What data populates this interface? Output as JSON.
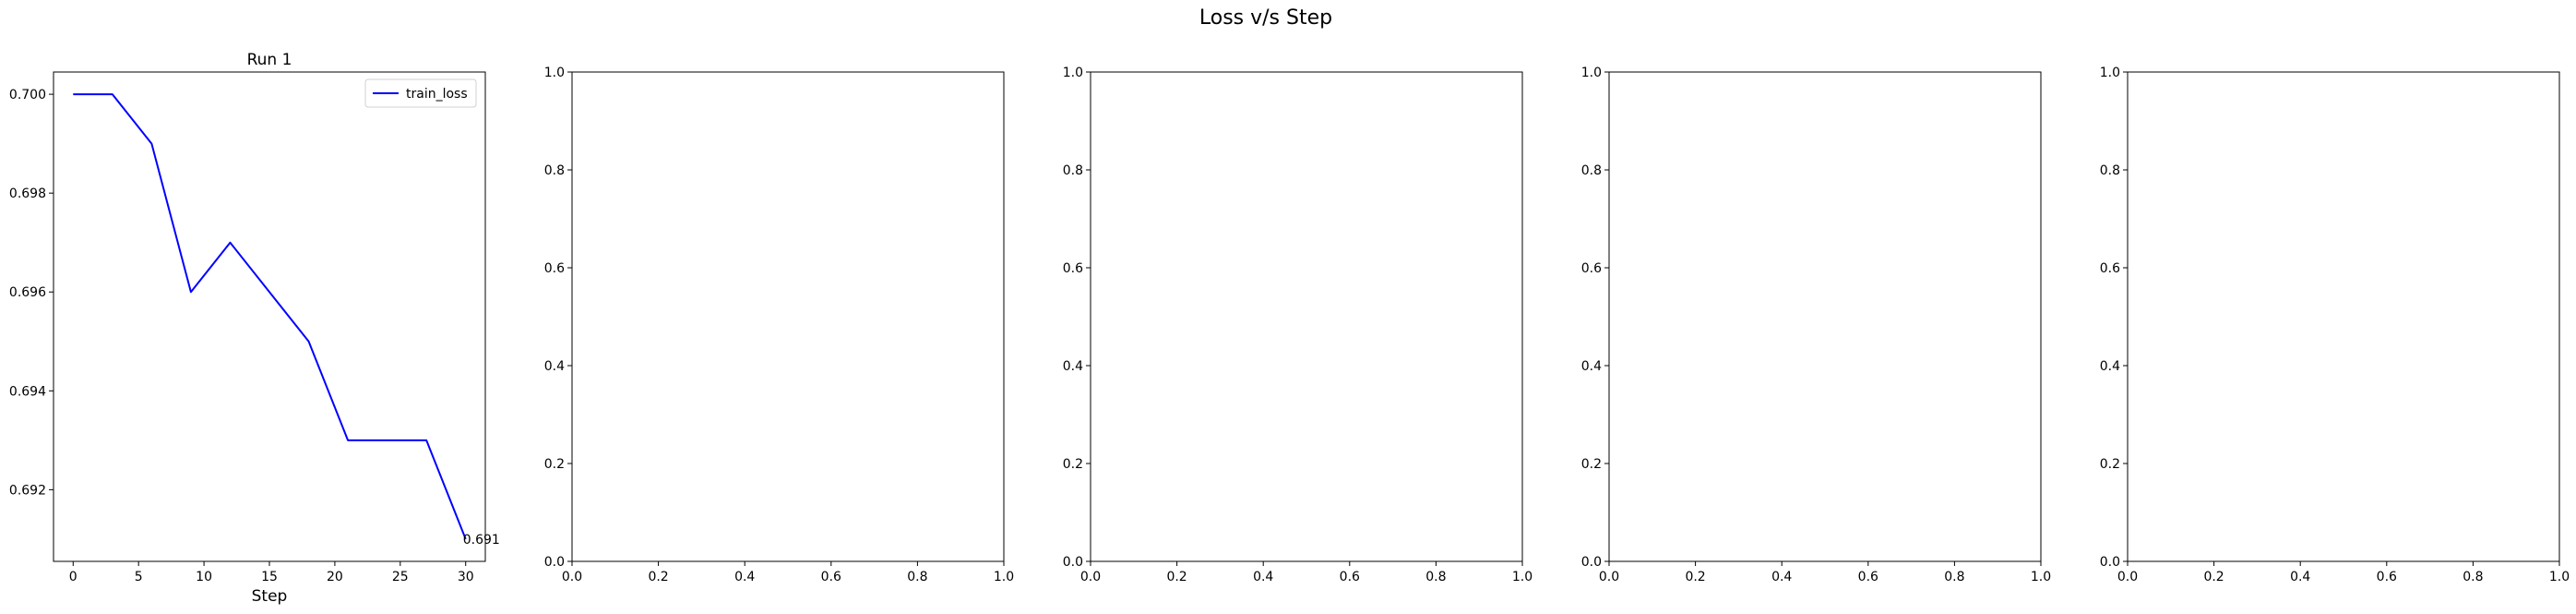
{
  "figure": {
    "suptitle": "Loss v/s Step"
  },
  "chart_data": [
    {
      "type": "line",
      "title": "Run 1",
      "xlabel": "Step",
      "ylabel": "",
      "xlim": [
        -1.5,
        31.5
      ],
      "ylim": [
        0.69055,
        0.70045
      ],
      "xticks": [
        0,
        5,
        10,
        15,
        20,
        25,
        30
      ],
      "xtick_labels": [
        "0",
        "5",
        "10",
        "15",
        "20",
        "25",
        "30"
      ],
      "yticks": [
        0.692,
        0.694,
        0.696,
        0.698,
        0.7
      ],
      "ytick_labels": [
        "0.692",
        "0.694",
        "0.696",
        "0.698",
        "0.700"
      ],
      "grid": false,
      "legend_position": "upper right",
      "series": [
        {
          "name": "train_loss",
          "color": "#0000ff",
          "x": [
            0,
            3,
            6,
            9,
            12,
            15,
            18,
            21,
            24,
            27,
            30
          ],
          "y": [
            0.7,
            0.7,
            0.699,
            0.696,
            0.697,
            0.696,
            0.695,
            0.693,
            0.693,
            0.693,
            0.691
          ]
        }
      ],
      "annotations": [
        {
          "text": "0.691",
          "x": 30,
          "y": 0.691
        }
      ]
    },
    {
      "type": "line",
      "title": "",
      "xlabel": "",
      "ylabel": "",
      "xlim": [
        0,
        1
      ],
      "ylim": [
        0,
        1
      ],
      "xticks": [
        0,
        0.2,
        0.4,
        0.6,
        0.8,
        1.0
      ],
      "xtick_labels": [
        "0.0",
        "0.2",
        "0.4",
        "0.6",
        "0.8",
        "1.0"
      ],
      "yticks": [
        0,
        0.2,
        0.4,
        0.6,
        0.8,
        1.0
      ],
      "ytick_labels": [
        "0.0",
        "0.2",
        "0.4",
        "0.6",
        "0.8",
        "1.0"
      ],
      "grid": false,
      "series": [],
      "annotations": []
    },
    {
      "type": "line",
      "title": "",
      "xlabel": "",
      "ylabel": "",
      "xlim": [
        0,
        1
      ],
      "ylim": [
        0,
        1
      ],
      "xticks": [
        0,
        0.2,
        0.4,
        0.6,
        0.8,
        1.0
      ],
      "xtick_labels": [
        "0.0",
        "0.2",
        "0.4",
        "0.6",
        "0.8",
        "1.0"
      ],
      "yticks": [
        0,
        0.2,
        0.4,
        0.6,
        0.8,
        1.0
      ],
      "ytick_labels": [
        "0.0",
        "0.2",
        "0.4",
        "0.6",
        "0.8",
        "1.0"
      ],
      "grid": false,
      "series": [],
      "annotations": []
    },
    {
      "type": "line",
      "title": "",
      "xlabel": "",
      "ylabel": "",
      "xlim": [
        0,
        1
      ],
      "ylim": [
        0,
        1
      ],
      "xticks": [
        0,
        0.2,
        0.4,
        0.6,
        0.8,
        1.0
      ],
      "xtick_labels": [
        "0.0",
        "0.2",
        "0.4",
        "0.6",
        "0.8",
        "1.0"
      ],
      "yticks": [
        0,
        0.2,
        0.4,
        0.6,
        0.8,
        1.0
      ],
      "ytick_labels": [
        "0.0",
        "0.2",
        "0.4",
        "0.6",
        "0.8",
        "1.0"
      ],
      "grid": false,
      "series": [],
      "annotations": []
    },
    {
      "type": "line",
      "title": "",
      "xlabel": "",
      "ylabel": "",
      "xlim": [
        0,
        1
      ],
      "ylim": [
        0,
        1
      ],
      "xticks": [
        0,
        0.2,
        0.4,
        0.6,
        0.8,
        1.0
      ],
      "xtick_labels": [
        "0.0",
        "0.2",
        "0.4",
        "0.6",
        "0.8",
        "1.0"
      ],
      "yticks": [
        0,
        0.2,
        0.4,
        0.6,
        0.8,
        1.0
      ],
      "ytick_labels": [
        "0.0",
        "0.2",
        "0.4",
        "0.6",
        "0.8",
        "1.0"
      ],
      "grid": false,
      "series": [],
      "annotations": []
    }
  ]
}
